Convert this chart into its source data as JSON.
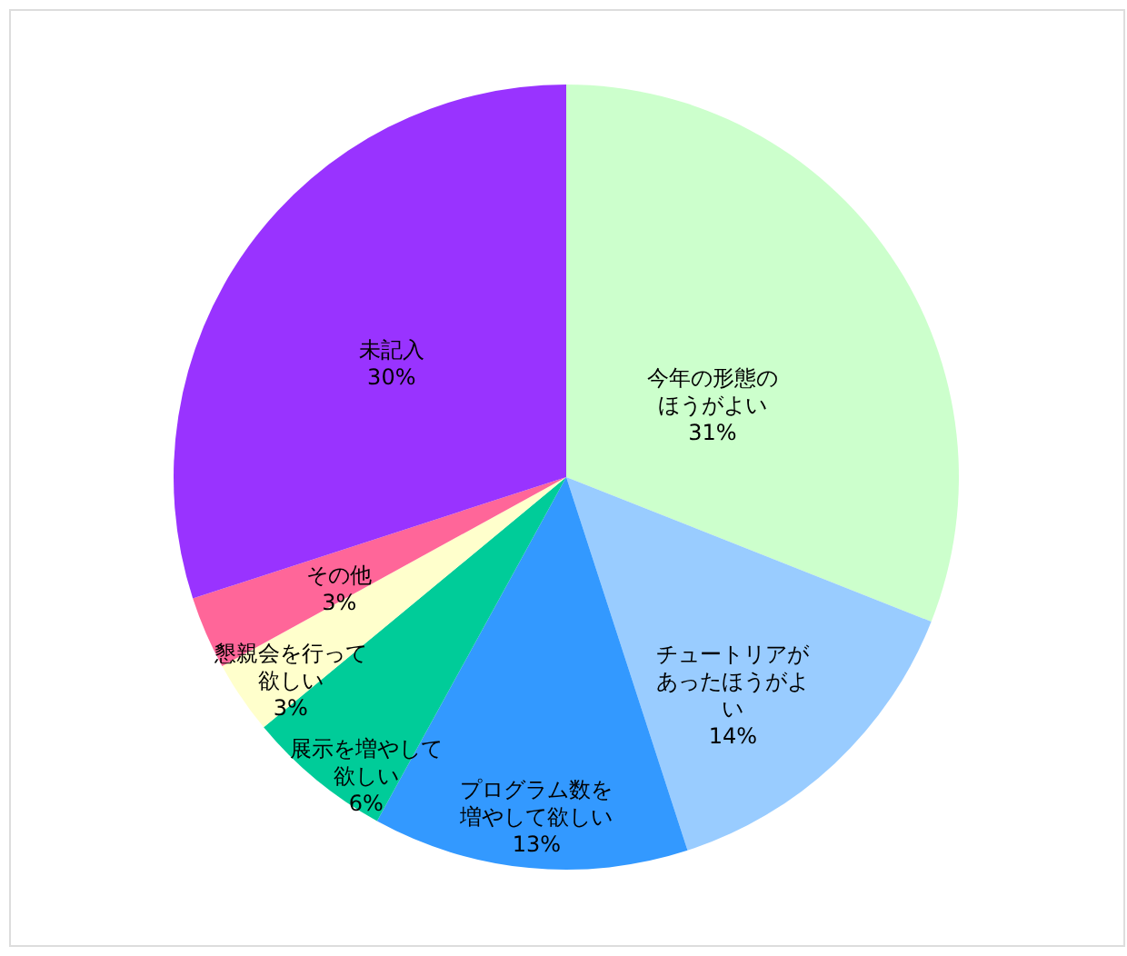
{
  "chart_data": {
    "type": "pie",
    "categories": [
      "今年の形態のほうがよい",
      "チュートリアがあったほうがよい",
      "プログラム数を増やして欲しい",
      "展示を増やして欲しい",
      "懇親会を行って欲しい",
      "その他",
      "未記入"
    ],
    "values": [
      31,
      14,
      13,
      6,
      3,
      3,
      30
    ],
    "colors": [
      "#ccffcc",
      "#99ccff",
      "#3399ff",
      "#00cc99",
      "#ffffcc",
      "#ff6699",
      "#9933ff"
    ],
    "value_labels": [
      "31%",
      "14%",
      "13%",
      "6%",
      "3%",
      "3%",
      "30%"
    ]
  }
}
